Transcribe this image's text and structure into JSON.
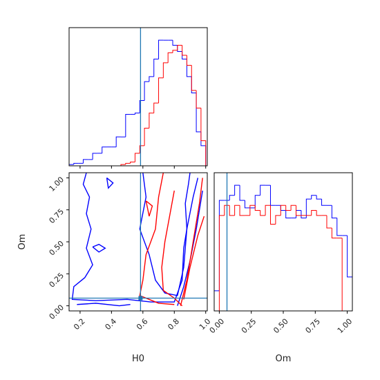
{
  "chart_data": [
    {
      "type": "histogram",
      "bins": [
        0.13,
        0.16,
        0.19,
        0.22,
        0.25,
        0.28,
        0.31,
        0.34,
        0.37,
        0.4,
        0.43,
        0.46,
        0.49,
        0.52,
        0.55,
        0.58,
        0.61,
        0.64,
        0.67,
        0.7,
        0.73,
        0.76,
        0.79,
        0.82,
        0.85,
        0.88,
        0.91,
        0.94,
        0.97,
        1.0
      ],
      "series": [
        {
          "color": "#0000ff",
          "values": [
            0.01,
            0.02,
            0.02,
            0.05,
            0.05,
            0.1,
            0.1,
            0.15,
            0.15,
            0.15,
            0.23,
            0.23,
            0.41,
            0.41,
            0.42,
            0.52,
            0.67,
            0.71,
            0.85,
            1.0,
            1.0,
            1.0,
            0.96,
            0.91,
            0.85,
            0.71,
            0.58,
            0.27,
            0.16
          ]
        },
        {
          "color": "#ff0000",
          "values": [
            0,
            0,
            0,
            0,
            0,
            0,
            0,
            0,
            0,
            0,
            0,
            0.01,
            0.02,
            0.03,
            0.1,
            0.16,
            0.3,
            0.42,
            0.5,
            0.7,
            0.82,
            0.9,
            0.92,
            0.96,
            0.88,
            0.8,
            0.6,
            0.46,
            0.2
          ]
        }
      ],
      "xlim": [
        0.13,
        1.01
      ],
      "ylim": [
        0,
        1.1
      ],
      "xticks": [
        0.2,
        0.4,
        0.6,
        0.8,
        {
          "value": 1,
          "label": "1.0"
        }
      ],
      "show_xtick_labels": false,
      "truth": {
        "x": 0.585,
        "color": "#1f77b4"
      }
    },
    {
      "type": "contour",
      "xlabel": "H0",
      "ylabel": "Om",
      "xlim": [
        0.13,
        1.01
      ],
      "ylim": [
        -0.04,
        1.04
      ],
      "xticks": [
        0.2,
        0.4,
        0.6,
        0.8,
        {
          "value": 1,
          "label": "1.0"
        }
      ],
      "yticks": [
        {
          "value": 0,
          "label": "0.00"
        },
        {
          "value": 0.25,
          "label": "0.25"
        },
        {
          "value": 0.5,
          "label": "0.50"
        },
        {
          "value": 0.75,
          "label": "0.75"
        },
        {
          "value": 1,
          "label": "1.00"
        }
      ],
      "contours": [
        {
          "color": "#0000ff",
          "x": [
            0.24,
            0.22,
            0.26,
            0.24,
            0.27,
            0.24,
            0.28,
            0.23,
            0.16,
            0.15,
            0.3,
            0.5,
            0.65,
            0.8,
            0.85,
            0.86,
            0.88,
            0.87,
            0.89,
            0.9
          ],
          "y": [
            1.04,
            0.95,
            0.85,
            0.72,
            0.6,
            0.45,
            0.32,
            0.22,
            0.15,
            0.05,
            0.04,
            0.05,
            0.03,
            0.03,
            0.2,
            0.45,
            0.6,
            0.8,
            0.95,
            1.04
          ]
        },
        {
          "color": "#0000ff",
          "x": [
            0.18,
            0.3,
            0.45,
            0.52
          ],
          "y": [
            0.01,
            0.02,
            0.0,
            0.01
          ]
        },
        {
          "color": "#0000ff",
          "x": [
            0.6,
            0.62,
            0.58,
            0.64,
            0.68,
            0.74,
            0.82,
            0.86,
            0.88,
            0.92,
            0.95
          ],
          "y": [
            1.04,
            0.85,
            0.6,
            0.4,
            0.2,
            0.1,
            0.08,
            0.3,
            0.6,
            0.85,
            1.0
          ]
        },
        {
          "color": "#0000ff",
          "x": [
            0.82,
            0.86,
            0.9,
            0.94,
            0.98
          ],
          "y": [
            0.0,
            0.15,
            0.35,
            0.6,
            0.9
          ]
        },
        {
          "color": "#0000ff",
          "x": [
            0.28,
            0.32,
            0.36,
            0.32,
            0.28
          ],
          "y": [
            0.46,
            0.48,
            0.45,
            0.42,
            0.46
          ]
        },
        {
          "color": "#0000ff",
          "x": [
            0.37,
            0.41,
            0.38,
            0.37
          ],
          "y": [
            1.0,
            0.96,
            0.92,
            1.0
          ]
        },
        {
          "color": "#ff0000",
          "x": [
            0.73,
            0.7,
            0.68,
            0.62,
            0.6,
            0.58,
            0.7,
            0.8
          ],
          "y": [
            1.04,
            0.85,
            0.6,
            0.4,
            0.2,
            0.08,
            0.02,
            0.01
          ]
        },
        {
          "color": "#ff0000",
          "x": [
            0.84,
            0.88,
            0.92,
            0.96,
            0.98
          ],
          "y": [
            0.0,
            0.2,
            0.5,
            0.8,
            1.0
          ]
        },
        {
          "color": "#ff0000",
          "x": [
            0.8,
            0.77,
            0.74,
            0.72,
            0.73,
            0.8,
            0.85
          ],
          "y": [
            0.9,
            0.7,
            0.5,
            0.3,
            0.12,
            0.06,
            0.0
          ]
        },
        {
          "color": "#ff0000",
          "x": [
            0.86,
            0.9,
            0.95,
            0.99
          ],
          "y": [
            0.05,
            0.3,
            0.55,
            0.7
          ]
        },
        {
          "color": "#ff0000",
          "x": [
            0.62,
            0.66,
            0.64,
            0.62
          ],
          "y": [
            0.82,
            0.78,
            0.7,
            0.82
          ]
        }
      ],
      "truth": {
        "x": 0.585,
        "y": 0.06,
        "color": "#1f77b4"
      }
    },
    {
      "type": "histogram",
      "xlabel": "Om",
      "bins": [
        -0.04,
        0.0,
        0.04,
        0.08,
        0.12,
        0.16,
        0.2,
        0.24,
        0.28,
        0.32,
        0.36,
        0.4,
        0.44,
        0.48,
        0.52,
        0.56,
        0.6,
        0.64,
        0.68,
        0.72,
        0.76,
        0.8,
        0.84,
        0.88,
        0.92,
        0.96,
        1.0,
        1.04
      ],
      "series": [
        {
          "color": "#0000ff",
          "values": [
            0.16,
            0.88,
            0.88,
            0.92,
            1.0,
            0.88,
            0.82,
            0.82,
            0.92,
            1.0,
            1.0,
            0.84,
            0.84,
            0.8,
            0.74,
            0.74,
            0.8,
            0.74,
            0.89,
            0.92,
            0.89,
            0.84,
            0.84,
            0.74,
            0.6,
            0.6,
            0.27
          ]
        },
        {
          "color": "#ff0000",
          "values": [
            0,
            0.76,
            0.84,
            0.76,
            0.84,
            0.76,
            0.76,
            0.84,
            0.8,
            0.76,
            0.84,
            0.69,
            0.76,
            0.84,
            0.8,
            0.84,
            0.76,
            0.76,
            0.76,
            0.8,
            0.76,
            0.76,
            0.66,
            0.58,
            0.58,
            0,
            0
          ]
        }
      ],
      "xlim": [
        -0.04,
        1.04
      ],
      "ylim": [
        0,
        1.1
      ],
      "xticks": [
        {
          "value": 0,
          "label": "0.00"
        },
        {
          "value": 0.25,
          "label": "0.25"
        },
        {
          "value": 0.5,
          "label": "0.50"
        },
        {
          "value": 0.75,
          "label": "0.75"
        },
        {
          "value": 1,
          "label": "1.00"
        }
      ],
      "truth": {
        "x": 0.06,
        "color": "#1f77b4"
      }
    }
  ]
}
